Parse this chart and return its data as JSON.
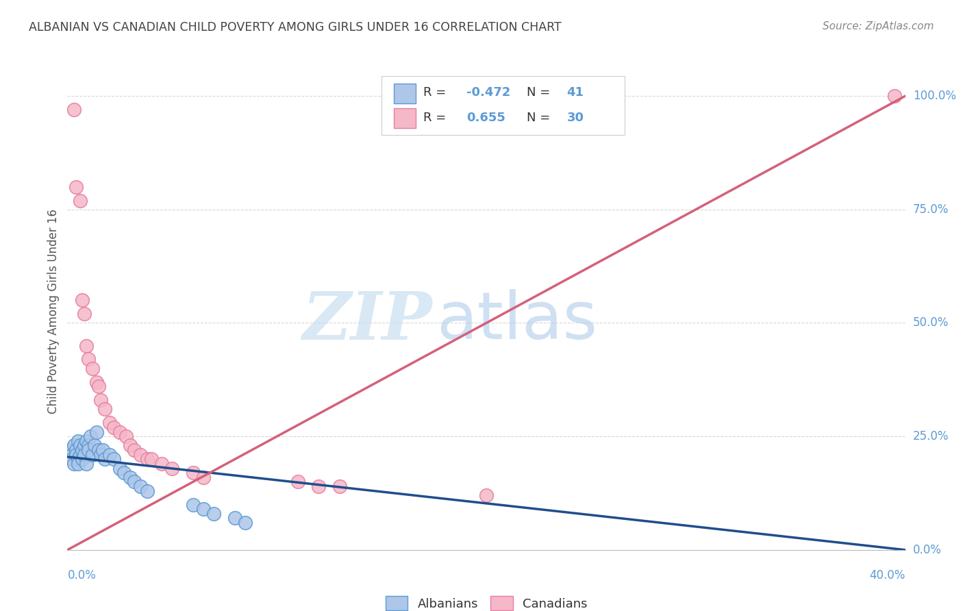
{
  "title": "ALBANIAN VS CANADIAN CHILD POVERTY AMONG GIRLS UNDER 16 CORRELATION CHART",
  "source": "Source: ZipAtlas.com",
  "ylabel": "Child Poverty Among Girls Under 16",
  "right_yticks": [
    "0.0%",
    "25.0%",
    "50.0%",
    "75.0%",
    "100.0%"
  ],
  "right_ytick_vals": [
    0.0,
    0.25,
    0.5,
    0.75,
    1.0
  ],
  "watermark_zip": "ZIP",
  "watermark_atlas": "atlas",
  "albanian_color": "#aec6e8",
  "albanian_edge": "#5b9bd5",
  "canadian_color": "#f4b8c8",
  "canadian_edge": "#e87da0",
  "line_albanian_color": "#1f4e8c",
  "line_canadian_color": "#d4607a",
  "albanian_x": [
    0.001,
    0.002,
    0.002,
    0.003,
    0.003,
    0.004,
    0.004,
    0.005,
    0.005,
    0.005,
    0.006,
    0.006,
    0.007,
    0.007,
    0.008,
    0.008,
    0.009,
    0.009,
    0.01,
    0.01,
    0.011,
    0.012,
    0.013,
    0.014,
    0.015,
    0.016,
    0.017,
    0.018,
    0.02,
    0.022,
    0.025,
    0.027,
    0.03,
    0.032,
    0.035,
    0.038,
    0.06,
    0.065,
    0.07,
    0.08,
    0.085
  ],
  "albanian_y": [
    0.22,
    0.21,
    0.2,
    0.23,
    0.19,
    0.22,
    0.21,
    0.24,
    0.2,
    0.19,
    0.23,
    0.21,
    0.22,
    0.2,
    0.23,
    0.21,
    0.24,
    0.19,
    0.23,
    0.22,
    0.25,
    0.21,
    0.23,
    0.26,
    0.22,
    0.21,
    0.22,
    0.2,
    0.21,
    0.2,
    0.18,
    0.17,
    0.16,
    0.15,
    0.14,
    0.13,
    0.1,
    0.09,
    0.08,
    0.07,
    0.06
  ],
  "canadian_x": [
    0.003,
    0.004,
    0.006,
    0.007,
    0.008,
    0.009,
    0.01,
    0.012,
    0.014,
    0.015,
    0.016,
    0.018,
    0.02,
    0.022,
    0.025,
    0.028,
    0.03,
    0.032,
    0.035,
    0.038,
    0.04,
    0.045,
    0.05,
    0.06,
    0.065,
    0.11,
    0.12,
    0.13,
    0.2,
    0.395
  ],
  "canadian_y": [
    0.97,
    0.8,
    0.77,
    0.55,
    0.52,
    0.45,
    0.42,
    0.4,
    0.37,
    0.36,
    0.33,
    0.31,
    0.28,
    0.27,
    0.26,
    0.25,
    0.23,
    0.22,
    0.21,
    0.2,
    0.2,
    0.19,
    0.18,
    0.17,
    0.16,
    0.15,
    0.14,
    0.14,
    0.12,
    1.0
  ],
  "xmin": 0.0,
  "xmax": 0.4,
  "ymin": 0.0,
  "ymax": 1.05,
  "grid_color": "#d8d8d8",
  "background_color": "#ffffff",
  "title_color": "#444444",
  "source_color": "#888888",
  "right_axis_color": "#5b9bd5",
  "legend_text_blue_color": "#5b9bd5",
  "legend_black_color": "#333333",
  "watermark_zip_color": "#c8dff0",
  "watermark_atlas_color": "#a8c8e8"
}
